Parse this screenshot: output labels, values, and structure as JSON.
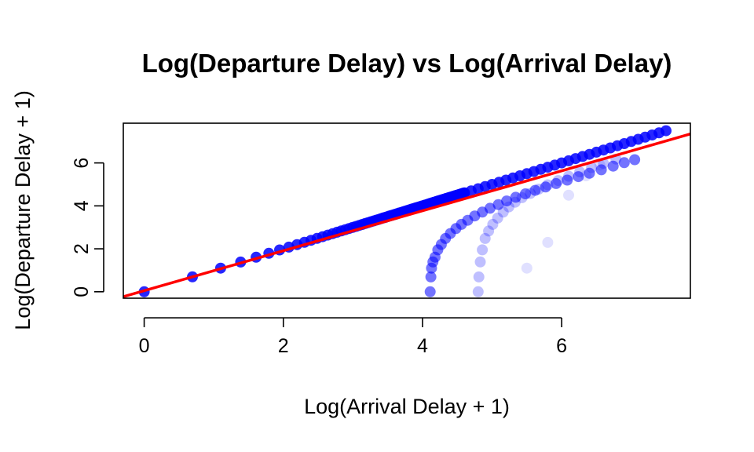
{
  "chart_data": {
    "type": "scatter",
    "title": "Log(Departure Delay) vs Log(Arrival Delay)",
    "xlabel": "Log(Arrival Delay + 1)",
    "ylabel": "Log(Departure Delay + 1)",
    "xlim": [
      -0.3,
      7.85
    ],
    "ylim": [
      -0.3,
      7.85
    ],
    "xticks": [
      0,
      2,
      4,
      6
    ],
    "yticks": [
      0,
      2,
      4,
      6
    ],
    "grid": false,
    "point_color": "#0000FF",
    "line_color": "#FF0000",
    "regression_line": {
      "intercept": 0.05,
      "slope": 0.93
    },
    "series": [
      {
        "values_x": [
          0,
          0.693,
          1.099,
          1.386,
          1.609,
          1.792,
          1.946,
          2.079,
          2.197,
          2.303,
          2.398,
          2.485,
          2.565,
          2.639,
          2.708,
          2.773,
          2.833,
          2.89,
          2.944,
          2.996,
          3.045,
          3.091,
          3.135,
          3.178,
          3.219,
          3.258,
          3.296,
          3.332,
          3.367,
          3.401,
          3.434,
          3.466,
          3.497,
          3.526,
          3.555,
          3.584,
          3.611,
          3.638,
          3.664,
          3.689,
          3.714,
          3.738,
          3.761,
          3.784,
          3.807,
          3.829,
          3.85,
          3.871,
          3.892,
          3.912,
          3.932,
          3.951,
          3.97,
          3.989,
          4.007,
          4.025,
          4.043,
          4.06,
          4.078,
          4.094,
          4.111,
          4.127,
          4.143,
          4.159,
          4.174,
          4.19,
          4.205,
          4.22,
          4.234,
          4.248,
          4.263,
          4.277,
          4.29,
          4.304,
          4.317,
          4.331,
          4.344,
          4.357,
          4.369,
          4.382,
          4.394,
          4.407,
          4.419,
          4.431,
          4.443,
          4.454,
          4.466,
          4.477,
          4.489,
          4.5,
          4.511,
          4.522,
          4.533,
          4.543,
          4.554,
          4.564,
          4.575,
          4.585,
          4.595,
          4.605,
          4.7,
          4.8,
          4.9,
          5.0,
          5.1,
          5.2,
          5.3,
          5.4,
          5.5,
          5.6,
          5.7,
          5.8,
          5.9,
          6.0,
          6.1,
          6.2,
          6.3,
          6.4,
          6.5,
          6.6,
          6.7,
          6.8,
          6.9,
          7.0,
          7.1,
          7.2,
          7.3,
          7.4,
          7.5
        ],
        "values_y": [
          0,
          0.693,
          1.099,
          1.386,
          1.609,
          1.792,
          1.946,
          2.079,
          2.197,
          2.303,
          2.398,
          2.485,
          2.565,
          2.639,
          2.708,
          2.773,
          2.833,
          2.89,
          2.944,
          2.996,
          3.045,
          3.091,
          3.135,
          3.178,
          3.219,
          3.258,
          3.296,
          3.332,
          3.367,
          3.401,
          3.434,
          3.466,
          3.497,
          3.526,
          3.555,
          3.584,
          3.611,
          3.638,
          3.664,
          3.689,
          3.714,
          3.738,
          3.761,
          3.784,
          3.807,
          3.829,
          3.85,
          3.871,
          3.892,
          3.912,
          3.932,
          3.951,
          3.97,
          3.989,
          4.007,
          4.025,
          4.043,
          4.06,
          4.078,
          4.094,
          4.111,
          4.127,
          4.143,
          4.159,
          4.174,
          4.19,
          4.205,
          4.22,
          4.234,
          4.248,
          4.263,
          4.277,
          4.29,
          4.304,
          4.317,
          4.331,
          4.344,
          4.357,
          4.369,
          4.382,
          4.394,
          4.407,
          4.419,
          4.431,
          4.443,
          4.454,
          4.466,
          4.477,
          4.489,
          4.5,
          4.511,
          4.522,
          4.533,
          4.543,
          4.554,
          4.564,
          4.575,
          4.585,
          4.595,
          4.605,
          4.7,
          4.8,
          4.9,
          5.0,
          5.1,
          5.2,
          5.3,
          5.4,
          5.5,
          5.6,
          5.7,
          5.8,
          5.9,
          6.0,
          6.1,
          6.2,
          6.3,
          6.4,
          6.5,
          6.6,
          6.7,
          6.8,
          6.9,
          7.0,
          7.1,
          7.2,
          7.3,
          7.4,
          7.5
        ]
      },
      {
        "values_x": [
          4.11,
          4.12,
          4.13,
          4.15,
          4.18,
          4.22,
          4.27,
          4.33,
          4.4,
          4.48,
          4.56,
          4.65,
          4.75,
          4.86,
          4.97,
          5.09,
          5.21,
          5.34,
          5.48,
          5.62,
          5.77,
          5.92,
          6.08,
          6.24,
          6.4,
          6.57,
          6.74,
          6.9,
          7.05
        ],
        "values_y": [
          0.0,
          0.69,
          1.1,
          1.39,
          1.61,
          1.95,
          2.2,
          2.48,
          2.71,
          2.94,
          3.14,
          3.33,
          3.53,
          3.71,
          3.89,
          4.06,
          4.23,
          4.4,
          4.56,
          4.72,
          4.88,
          5.04,
          5.2,
          5.36,
          5.52,
          5.68,
          5.85,
          6.01,
          6.15
        ]
      },
      {
        "values_x": [
          4.8,
          4.81,
          4.83,
          4.86,
          4.9,
          4.95,
          5.01,
          5.08,
          5.16,
          5.24,
          5.33,
          5.43,
          5.55,
          5.67,
          5.8,
          5.95,
          6.1,
          6.26,
          6.43,
          6.6,
          6.78
        ],
        "values_y": [
          0.0,
          0.69,
          1.39,
          1.95,
          2.48,
          2.83,
          3.14,
          3.43,
          3.71,
          3.95,
          4.17,
          4.38,
          4.58,
          4.78,
          4.98,
          5.18,
          5.38,
          5.58,
          5.78,
          5.98,
          6.18
        ]
      },
      {
        "values_x": [
          5.5,
          5.8,
          6.1,
          6.35,
          6.55
        ],
        "values_y": [
          1.1,
          2.3,
          4.5,
          5.4,
          5.9
        ]
      }
    ]
  }
}
